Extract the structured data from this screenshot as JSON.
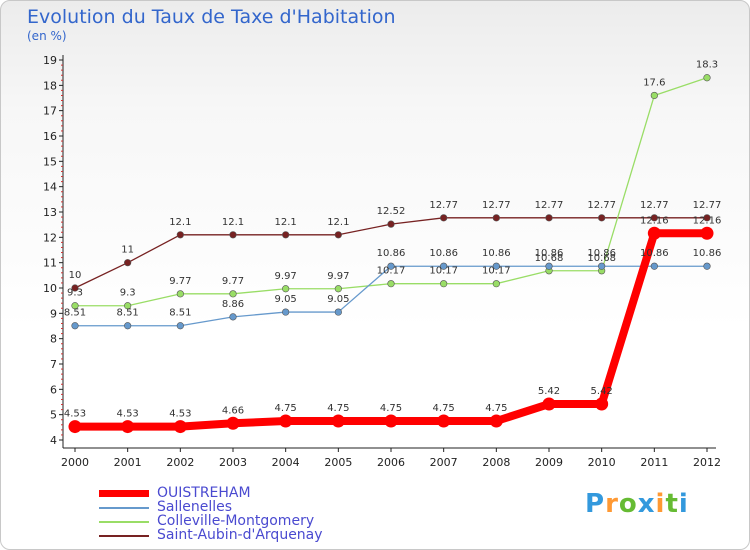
{
  "chart_data": {
    "type": "line",
    "title": "Evolution du Taux de Taxe d'Habitation",
    "unit_label": "(en %)",
    "x": [
      "2000",
      "2001",
      "2002",
      "2003",
      "2004",
      "2005",
      "2006",
      "2007",
      "2008",
      "2009",
      "2010",
      "2011",
      "2012"
    ],
    "ylim": [
      4,
      19
    ],
    "yticks": [
      4,
      5,
      6,
      7,
      8,
      9,
      10,
      11,
      12,
      13,
      14,
      15,
      16,
      17,
      18,
      19
    ],
    "grid": false,
    "legend_position": "bottom-left",
    "series": [
      {
        "name": "OUISTREHAM",
        "color": "#ff0000",
        "values": [
          4.53,
          4.53,
          4.53,
          4.66,
          4.75,
          4.75,
          4.75,
          4.75,
          4.75,
          5.42,
          5.42,
          12.16,
          12.16
        ],
        "labels": [
          "4.53",
          "4.53",
          "4.53",
          "4.66",
          "4.75",
          "4.75",
          "4.75",
          "4.75",
          "4.75",
          "5.42",
          "5.42",
          "12.16",
          "12.16"
        ]
      },
      {
        "name": "Sallenelles",
        "color": "#6699cc",
        "values": [
          8.51,
          8.51,
          8.51,
          8.86,
          9.05,
          9.05,
          10.86,
          10.86,
          10.86,
          10.86,
          10.86,
          10.86,
          10.86
        ],
        "labels": [
          "8.51",
          "8.51",
          "8.51",
          "8.86",
          "9.05",
          "9.05",
          "10.86",
          "10.86",
          "10.86",
          "10.86",
          "10.86",
          "10.86",
          "10.86"
        ]
      },
      {
        "name": "Colleville-Montgomery",
        "color": "#99dd66",
        "values": [
          9.3,
          9.3,
          9.77,
          9.77,
          9.97,
          9.97,
          10.17,
          10.17,
          10.17,
          10.68,
          10.68,
          17.6,
          18.3
        ],
        "labels": [
          "9.3",
          "9.3",
          "9.77",
          "9.77",
          "9.97",
          "9.97",
          "10.17",
          "10.17",
          "10.17",
          "10.68",
          "10.68",
          "17.6",
          "18.3"
        ]
      },
      {
        "name": "Saint-Aubin-d'Arquenay",
        "color": "#772222",
        "values": [
          10,
          11,
          12.1,
          12.1,
          12.1,
          12.1,
          12.52,
          12.77,
          12.77,
          12.77,
          12.77,
          12.77,
          12.77
        ],
        "labels": [
          "10",
          "11",
          "12.1",
          "12.1",
          "12.1",
          "12.1",
          "12.52",
          "12.77",
          "12.77",
          "12.77",
          "12.77",
          "12.77",
          "12.77"
        ]
      }
    ]
  },
  "logo": {
    "letters": [
      "P",
      "r",
      "o",
      "x",
      "i",
      "t",
      "i"
    ],
    "colors": [
      "#3399dd",
      "#ff9933",
      "#66bb33",
      "#3399dd",
      "#ff9933",
      "#66bb33",
      "#3399dd"
    ]
  }
}
